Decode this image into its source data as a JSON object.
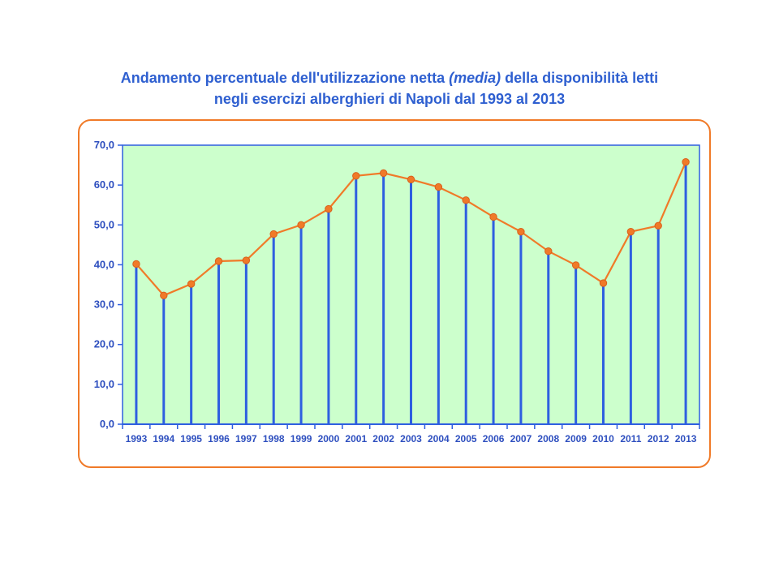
{
  "title": {
    "line1_a": "Andamento percentuale dell'utilizzazione netta ",
    "line1_em": "(media)",
    "line1_b": "  della disponibilità letti",
    "line2": "negli esercizi alberghieri di Napoli dal 1993 al 2013"
  },
  "colors": {
    "title": "#2e5fd0",
    "plot_bg": "#ccffcc",
    "bars": "#2e5fe0",
    "line": "#f07a28",
    "frame": "#f07a28"
  },
  "chart_data": {
    "type": "line",
    "x": [
      "1993",
      "1994",
      "1995",
      "1996",
      "1997",
      "1998",
      "1999",
      "2000",
      "2001",
      "2002",
      "2003",
      "2004",
      "2005",
      "2006",
      "2007",
      "2008",
      "2009",
      "2010",
      "2011",
      "2012",
      "2013"
    ],
    "series": [
      {
        "values": [
          40.2,
          32.3,
          35.2,
          40.9,
          41.1,
          47.7,
          50.0,
          54.0,
          62.3,
          63.0,
          61.4,
          59.5,
          56.2,
          52.0,
          48.3,
          43.4,
          39.9,
          35.4,
          48.3,
          49.8,
          65.8
        ]
      }
    ],
    "drop_lines": true,
    "ylim": [
      0,
      70
    ],
    "yticks": [
      "0,0",
      "10,0",
      "20,0",
      "30,0",
      "40,0",
      "50,0",
      "60,0",
      "70,0"
    ],
    "ytick_values": [
      0,
      10,
      20,
      30,
      40,
      50,
      60,
      70
    ],
    "grid": false
  }
}
